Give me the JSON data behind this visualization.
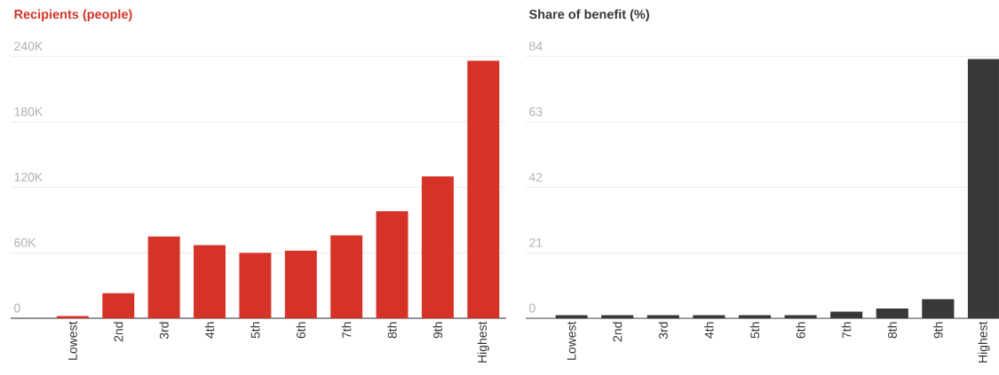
{
  "chart_data": [
    {
      "type": "bar",
      "title": "Recipients (people)",
      "categories": [
        "Lowest",
        "2nd",
        "3rd",
        "4th",
        "5th",
        "6th",
        "7th",
        "8th",
        "9th",
        "Highest"
      ],
      "values": [
        2000,
        23000,
        75000,
        67000,
        60000,
        62000,
        76000,
        98000,
        130000,
        236000
      ],
      "color": "#d63328",
      "ylim": [
        0,
        240000
      ],
      "yticks": [
        {
          "value": 0,
          "label": "0"
        },
        {
          "value": 60000,
          "label": "60K"
        },
        {
          "value": 120000,
          "label": "120K"
        },
        {
          "value": 180000,
          "label": "180K"
        },
        {
          "value": 240000,
          "label": "240K"
        }
      ],
      "grid": "y"
    },
    {
      "type": "bar",
      "title": "Share of benefit (%)",
      "categories": [
        "Lowest",
        "2nd",
        "3rd",
        "4th",
        "5th",
        "6th",
        "7th",
        "8th",
        "9th",
        "Highest"
      ],
      "values": [
        1.0,
        1.0,
        1.0,
        1.0,
        1.0,
        1.0,
        2.1,
        3.1,
        6.1,
        83.2
      ],
      "color": "#383838",
      "ylim": [
        0,
        84
      ],
      "yticks": [
        0,
        21,
        42,
        63,
        84
      ],
      "grid": "y"
    }
  ]
}
